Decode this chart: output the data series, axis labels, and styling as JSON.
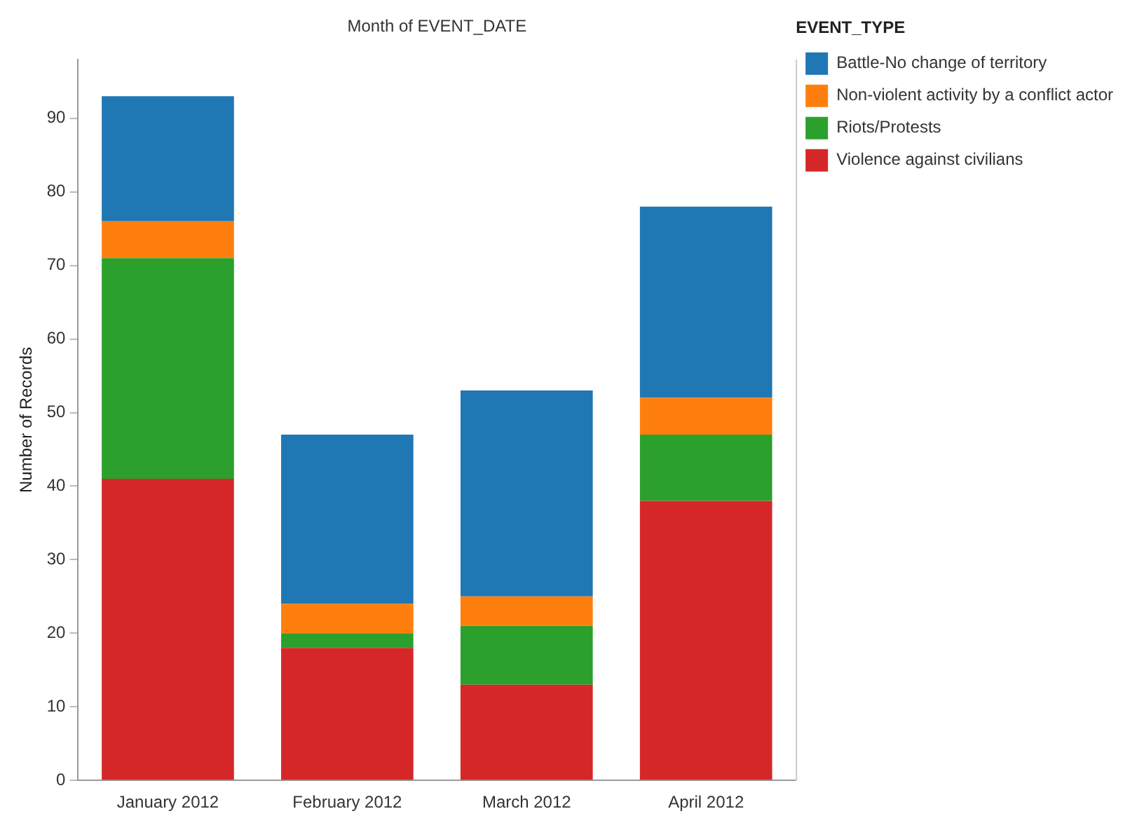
{
  "chart_data": {
    "type": "bar",
    "title": "Month of EVENT_DATE",
    "ylabel": "Number of Records",
    "legend_title": "EVENT_TYPE",
    "categories": [
      "January 2012",
      "February 2012",
      "March 2012",
      "April 2012"
    ],
    "stacked": true,
    "series": [
      {
        "name": "Violence against civilians",
        "color": "#d62728",
        "values": [
          41,
          18,
          13,
          38
        ]
      },
      {
        "name": "Riots/Protests",
        "color": "#2ca02c",
        "values": [
          30,
          2,
          8,
          9
        ]
      },
      {
        "name": "Non-violent activity by a conflict actor",
        "color": "#ff7f0e",
        "values": [
          5,
          4,
          4,
          5
        ]
      },
      {
        "name": "Battle-No change of territory",
        "color": "#1f77b4",
        "values": [
          17,
          23,
          28,
          26
        ]
      }
    ],
    "ylim": [
      0,
      98
    ],
    "yticks": [
      0,
      10,
      20,
      30,
      40,
      50,
      60,
      70,
      80,
      90
    ],
    "grid": false,
    "legend": "top right"
  }
}
